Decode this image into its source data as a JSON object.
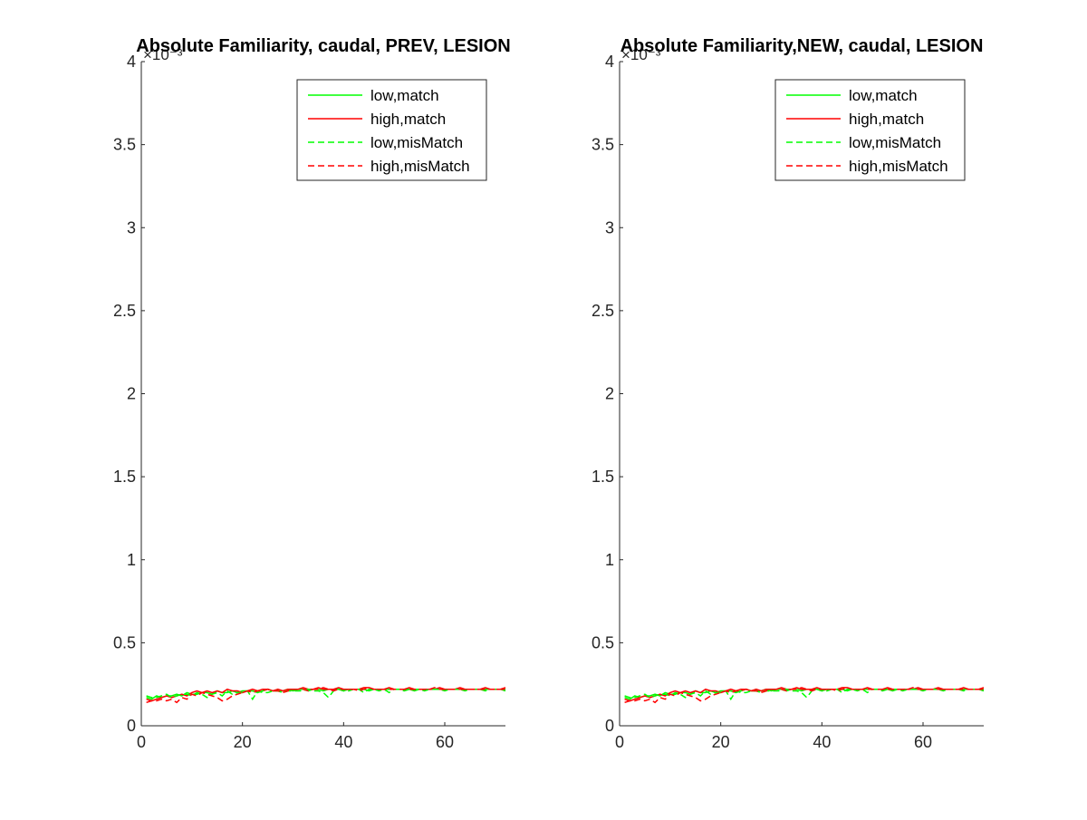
{
  "figure": {
    "background": "#ffffff",
    "axis_color": "#262626",
    "exponent_label": "×10⁻³"
  },
  "chart_data": [
    {
      "type": "line",
      "title": "Absolute Familiarity, caudal, PREV, LESION",
      "xlabel": "",
      "ylabel": "",
      "xlim": [
        0,
        72
      ],
      "ylim": [
        0,
        4
      ],
      "y_scale_exponent": -3,
      "xticks": [
        0,
        20,
        40,
        60
      ],
      "yticks": [
        0,
        0.5,
        1,
        1.5,
        2,
        2.5,
        3,
        3.5,
        4
      ],
      "grid": false,
      "legend_position": "top-right",
      "x": [
        1,
        2,
        3,
        4,
        5,
        6,
        7,
        8,
        9,
        10,
        11,
        12,
        13,
        14,
        15,
        16,
        17,
        18,
        19,
        20,
        21,
        22,
        23,
        24,
        25,
        26,
        27,
        28,
        29,
        30,
        31,
        32,
        33,
        34,
        35,
        36,
        37,
        38,
        39,
        40,
        41,
        42,
        43,
        44,
        45,
        46,
        47,
        48,
        49,
        50,
        51,
        52,
        53,
        54,
        55,
        56,
        57,
        58,
        59,
        60,
        61,
        62,
        63,
        64,
        65,
        66,
        67,
        68,
        69,
        70,
        71,
        72
      ],
      "series": [
        {
          "name": "low,match",
          "color": "#00ff00",
          "dash": "solid",
          "values": [
            0.17,
            0.16,
            0.18,
            0.17,
            0.18,
            0.18,
            0.19,
            0.18,
            0.2,
            0.19,
            0.19,
            0.2,
            0.2,
            0.19,
            0.21,
            0.2,
            0.2,
            0.21,
            0.2,
            0.21,
            0.21,
            0.21,
            0.2,
            0.21,
            0.22,
            0.21,
            0.21,
            0.21,
            0.22,
            0.21,
            0.22,
            0.22,
            0.21,
            0.22,
            0.22,
            0.21,
            0.22,
            0.22,
            0.22,
            0.21,
            0.22,
            0.22,
            0.22,
            0.22,
            0.21,
            0.22,
            0.22,
            0.22,
            0.22,
            0.22,
            0.22,
            0.22,
            0.22,
            0.21,
            0.22,
            0.22,
            0.22,
            0.22,
            0.22,
            0.22,
            0.22,
            0.22,
            0.22,
            0.22,
            0.22,
            0.22,
            0.22,
            0.22,
            0.22,
            0.22,
            0.22,
            0.22
          ]
        },
        {
          "name": "high,match",
          "color": "#ff0000",
          "dash": "solid",
          "values": [
            0.14,
            0.15,
            0.16,
            0.17,
            0.18,
            0.17,
            0.18,
            0.19,
            0.18,
            0.2,
            0.21,
            0.2,
            0.21,
            0.2,
            0.21,
            0.2,
            0.22,
            0.21,
            0.21,
            0.2,
            0.21,
            0.22,
            0.21,
            0.22,
            0.22,
            0.21,
            0.22,
            0.21,
            0.22,
            0.22,
            0.22,
            0.23,
            0.22,
            0.22,
            0.23,
            0.22,
            0.22,
            0.22,
            0.23,
            0.22,
            0.22,
            0.22,
            0.22,
            0.23,
            0.23,
            0.22,
            0.22,
            0.22,
            0.23,
            0.22,
            0.22,
            0.22,
            0.23,
            0.22,
            0.22,
            0.22,
            0.22,
            0.22,
            0.23,
            0.22,
            0.22,
            0.22,
            0.23,
            0.22,
            0.22,
            0.22,
            0.22,
            0.23,
            0.22,
            0.22,
            0.22,
            0.23
          ]
        },
        {
          "name": "low,misMatch",
          "color": "#00ff00",
          "dash": "dashed",
          "values": [
            0.18,
            0.17,
            0.17,
            0.18,
            0.19,
            0.17,
            0.18,
            0.19,
            0.19,
            0.18,
            0.2,
            0.19,
            0.17,
            0.19,
            0.2,
            0.18,
            0.21,
            0.19,
            0.2,
            0.2,
            0.21,
            0.16,
            0.21,
            0.2,
            0.2,
            0.21,
            0.21,
            0.2,
            0.21,
            0.21,
            0.21,
            0.21,
            0.22,
            0.21,
            0.21,
            0.2,
            0.17,
            0.21,
            0.22,
            0.21,
            0.21,
            0.22,
            0.22,
            0.2,
            0.22,
            0.22,
            0.21,
            0.22,
            0.2,
            0.22,
            0.22,
            0.21,
            0.22,
            0.22,
            0.22,
            0.21,
            0.22,
            0.22,
            0.22,
            0.21,
            0.22,
            0.22,
            0.22,
            0.21,
            0.22,
            0.22,
            0.22,
            0.21,
            0.22,
            0.22,
            0.22,
            0.21
          ]
        },
        {
          "name": "high,misMatch",
          "color": "#ff0000",
          "dash": "dashed",
          "values": [
            0.16,
            0.15,
            0.15,
            0.16,
            0.15,
            0.16,
            0.14,
            0.17,
            0.16,
            0.19,
            0.18,
            0.2,
            0.19,
            0.18,
            0.17,
            0.15,
            0.16,
            0.18,
            0.19,
            0.2,
            0.21,
            0.2,
            0.21,
            0.21,
            0.22,
            0.21,
            0.21,
            0.2,
            0.21,
            0.22,
            0.22,
            0.22,
            0.21,
            0.22,
            0.22,
            0.23,
            0.22,
            0.21,
            0.22,
            0.22,
            0.22,
            0.22,
            0.21,
            0.22,
            0.23,
            0.22,
            0.22,
            0.22,
            0.22,
            0.22,
            0.22,
            0.22,
            0.22,
            0.22,
            0.22,
            0.22,
            0.22,
            0.23,
            0.22,
            0.22,
            0.22,
            0.22,
            0.22,
            0.22,
            0.22,
            0.22,
            0.22,
            0.22,
            0.22,
            0.22,
            0.22,
            0.22
          ]
        }
      ]
    },
    {
      "type": "line",
      "title": "Absolute Familiarity,NEW, caudal, LESION",
      "xlabel": "",
      "ylabel": "",
      "xlim": [
        0,
        72
      ],
      "ylim": [
        0,
        4
      ],
      "y_scale_exponent": -3,
      "xticks": [
        0,
        20,
        40,
        60
      ],
      "yticks": [
        0,
        0.5,
        1,
        1.5,
        2,
        2.5,
        3,
        3.5,
        4
      ],
      "grid": false,
      "legend_position": "top-right",
      "x": [
        1,
        2,
        3,
        4,
        5,
        6,
        7,
        8,
        9,
        10,
        11,
        12,
        13,
        14,
        15,
        16,
        17,
        18,
        19,
        20,
        21,
        22,
        23,
        24,
        25,
        26,
        27,
        28,
        29,
        30,
        31,
        32,
        33,
        34,
        35,
        36,
        37,
        38,
        39,
        40,
        41,
        42,
        43,
        44,
        45,
        46,
        47,
        48,
        49,
        50,
        51,
        52,
        53,
        54,
        55,
        56,
        57,
        58,
        59,
        60,
        61,
        62,
        63,
        64,
        65,
        66,
        67,
        68,
        69,
        70,
        71,
        72
      ],
      "series": [
        {
          "name": "low,match",
          "color": "#00ff00",
          "dash": "solid",
          "values": [
            0.17,
            0.16,
            0.18,
            0.17,
            0.18,
            0.18,
            0.19,
            0.18,
            0.2,
            0.19,
            0.19,
            0.2,
            0.2,
            0.19,
            0.21,
            0.2,
            0.2,
            0.21,
            0.2,
            0.21,
            0.21,
            0.21,
            0.2,
            0.21,
            0.22,
            0.21,
            0.21,
            0.21,
            0.22,
            0.21,
            0.22,
            0.22,
            0.21,
            0.22,
            0.22,
            0.21,
            0.22,
            0.22,
            0.22,
            0.21,
            0.22,
            0.22,
            0.22,
            0.22,
            0.21,
            0.22,
            0.22,
            0.22,
            0.22,
            0.22,
            0.22,
            0.22,
            0.22,
            0.21,
            0.22,
            0.22,
            0.22,
            0.22,
            0.22,
            0.22,
            0.22,
            0.22,
            0.22,
            0.22,
            0.22,
            0.22,
            0.22,
            0.22,
            0.22,
            0.22,
            0.22,
            0.22
          ]
        },
        {
          "name": "high,match",
          "color": "#ff0000",
          "dash": "solid",
          "values": [
            0.14,
            0.15,
            0.16,
            0.17,
            0.18,
            0.17,
            0.18,
            0.19,
            0.18,
            0.2,
            0.21,
            0.2,
            0.21,
            0.2,
            0.21,
            0.2,
            0.22,
            0.21,
            0.21,
            0.2,
            0.21,
            0.22,
            0.21,
            0.22,
            0.22,
            0.21,
            0.22,
            0.21,
            0.22,
            0.22,
            0.22,
            0.23,
            0.22,
            0.22,
            0.23,
            0.22,
            0.22,
            0.22,
            0.23,
            0.22,
            0.22,
            0.22,
            0.22,
            0.23,
            0.23,
            0.22,
            0.22,
            0.22,
            0.23,
            0.22,
            0.22,
            0.22,
            0.23,
            0.22,
            0.22,
            0.22,
            0.22,
            0.22,
            0.23,
            0.22,
            0.22,
            0.22,
            0.23,
            0.22,
            0.22,
            0.22,
            0.22,
            0.23,
            0.22,
            0.22,
            0.22,
            0.23
          ]
        },
        {
          "name": "low,misMatch",
          "color": "#00ff00",
          "dash": "dashed",
          "values": [
            0.18,
            0.17,
            0.17,
            0.18,
            0.19,
            0.17,
            0.18,
            0.19,
            0.19,
            0.18,
            0.2,
            0.19,
            0.17,
            0.19,
            0.2,
            0.18,
            0.21,
            0.19,
            0.2,
            0.2,
            0.21,
            0.16,
            0.21,
            0.2,
            0.2,
            0.21,
            0.21,
            0.2,
            0.21,
            0.21,
            0.21,
            0.21,
            0.22,
            0.21,
            0.21,
            0.2,
            0.17,
            0.21,
            0.22,
            0.21,
            0.21,
            0.22,
            0.22,
            0.2,
            0.22,
            0.22,
            0.21,
            0.22,
            0.2,
            0.22,
            0.22,
            0.21,
            0.22,
            0.22,
            0.22,
            0.21,
            0.22,
            0.22,
            0.22,
            0.21,
            0.22,
            0.22,
            0.22,
            0.21,
            0.22,
            0.22,
            0.22,
            0.21,
            0.22,
            0.22,
            0.22,
            0.21
          ]
        },
        {
          "name": "high,misMatch",
          "color": "#ff0000",
          "dash": "dashed",
          "values": [
            0.16,
            0.15,
            0.15,
            0.16,
            0.15,
            0.16,
            0.14,
            0.17,
            0.16,
            0.19,
            0.18,
            0.2,
            0.19,
            0.18,
            0.17,
            0.15,
            0.16,
            0.18,
            0.19,
            0.2,
            0.21,
            0.2,
            0.21,
            0.21,
            0.22,
            0.21,
            0.21,
            0.2,
            0.21,
            0.22,
            0.22,
            0.22,
            0.21,
            0.22,
            0.22,
            0.23,
            0.22,
            0.21,
            0.22,
            0.22,
            0.22,
            0.22,
            0.21,
            0.22,
            0.23,
            0.22,
            0.22,
            0.22,
            0.22,
            0.22,
            0.22,
            0.22,
            0.22,
            0.22,
            0.22,
            0.22,
            0.22,
            0.23,
            0.22,
            0.22,
            0.22,
            0.22,
            0.22,
            0.22,
            0.22,
            0.22,
            0.22,
            0.22,
            0.22,
            0.22,
            0.22,
            0.22
          ]
        }
      ]
    }
  ]
}
